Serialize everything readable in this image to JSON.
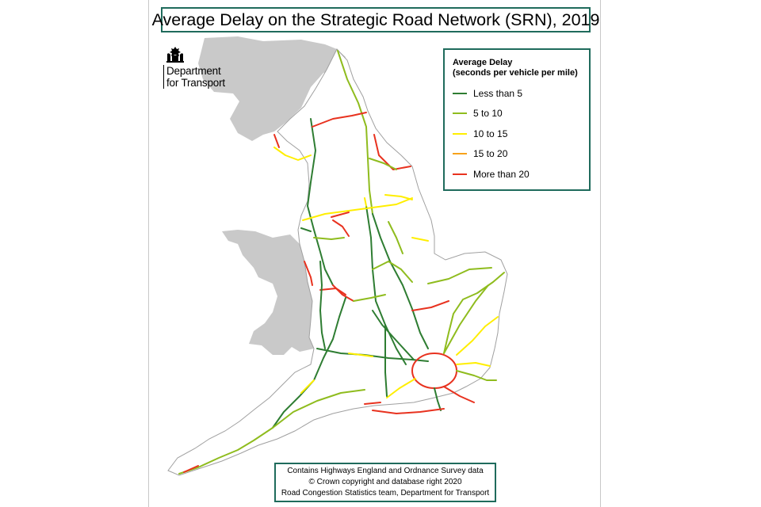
{
  "title": "Average Delay on the Strategic Road Network (SRN), 2019",
  "logo": {
    "crest_icon": "royal-crest-icon",
    "line1": "Department",
    "line2": "for Transport"
  },
  "legend": {
    "title_line1": "Average Delay",
    "title_line2": "(seconds per vehicle per mile)",
    "items": [
      {
        "label": "Less than 5",
        "color": "#2e7d32"
      },
      {
        "label": "5 to 10",
        "color": "#8fbc1e"
      },
      {
        "label": "10 to 15",
        "color": "#ffee00"
      },
      {
        "label": "15 to 20",
        "color": "#f7a21b"
      },
      {
        "label": "More than 20",
        "color": "#e8321f"
      }
    ]
  },
  "credits": {
    "line1": "Contains Highways England and Ordnance Survey data",
    "line2": "© Crown copyright and database right 2020",
    "line3": "Road Congestion Statistics team, Department for Transport"
  },
  "colors": {
    "land": "#c9c9c9",
    "england": "#ffffff",
    "border": "#1f6b5c"
  }
}
